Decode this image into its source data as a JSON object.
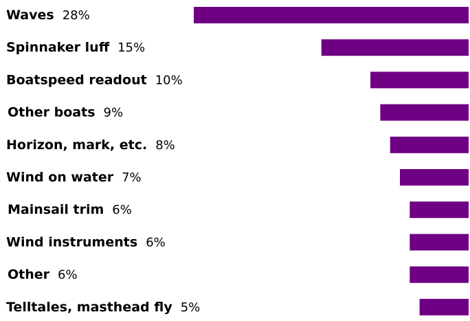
{
  "chart_data": {
    "type": "bar",
    "orientation": "horizontal",
    "bar_color": "#6f0083",
    "categories": [
      "Waves",
      "Spinnaker luff",
      "Boatspeed readout",
      "Other boats",
      "Horizon, mark, etc.",
      "Wind on water",
      "Mainsail trim",
      "Wind instruments",
      "Other",
      "Telltales, masthead fly"
    ],
    "values": [
      28,
      15,
      10,
      9,
      8,
      7,
      6,
      6,
      6,
      5
    ],
    "value_labels": [
      "28%",
      "15%",
      "10%",
      "9%",
      "8%",
      "7%",
      "6%",
      "6%",
      "6%",
      "5%"
    ],
    "title": "",
    "xlabel": "",
    "ylabel": "",
    "xlim": [
      0,
      28
    ],
    "grid": false,
    "legend": "none"
  }
}
